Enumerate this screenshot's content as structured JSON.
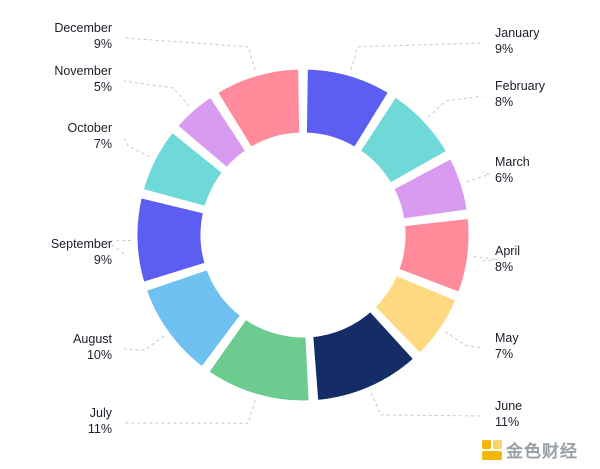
{
  "chart_data": {
    "type": "pie",
    "variant": "donut",
    "categories": [
      "January",
      "February",
      "March",
      "April",
      "May",
      "June",
      "July",
      "August",
      "September",
      "October",
      "November",
      "December"
    ],
    "values": [
      9,
      8,
      6,
      8,
      7,
      11,
      11,
      10,
      9,
      7,
      5,
      9
    ],
    "value_labels": [
      "9%",
      "8%",
      "6%",
      "8%",
      "7%",
      "11%",
      "11%",
      "10%",
      "9%",
      "7%",
      "5%",
      "9%"
    ],
    "colors": [
      "#5b5ef0",
      "#6fd8d8",
      "#d99bf0",
      "#ff8a9a",
      "#ffd882",
      "#152d66",
      "#6ccb8f",
      "#6ec1f0",
      "#5b5ef0",
      "#6fd8d8",
      "#d99bf0",
      "#ff8a9a"
    ],
    "title": "",
    "legend": "none"
  },
  "watermark": {
    "text": "金色财经"
  }
}
